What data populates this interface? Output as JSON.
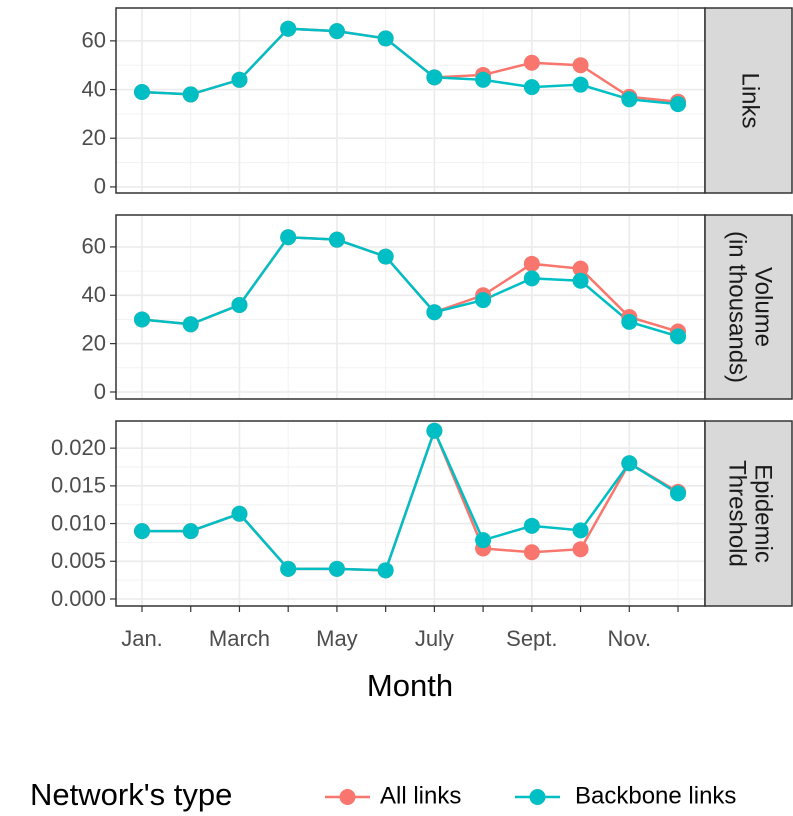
{
  "chart_data": {
    "type": "line",
    "x_label": "Month",
    "legend_title": "Network's type",
    "categories": [
      "Jan.",
      null,
      "March",
      null,
      "May",
      null,
      "July",
      null,
      "Sept.",
      null,
      "Nov.",
      null
    ],
    "series": [
      {
        "name": "All links",
        "color": "#F8766D"
      },
      {
        "name": "Backbone links",
        "color": "#00BFC4"
      }
    ],
    "facets": [
      {
        "label": [
          "Links"
        ],
        "ylim": [
          -2.5,
          73.5
        ],
        "yticks": [
          0,
          20,
          40,
          60
        ],
        "series": [
          {
            "values": [
              39,
              38,
              44,
              65,
              64,
              61,
              45,
              46,
              51,
              50,
              37,
              35
            ]
          },
          {
            "values": [
              39,
              38,
              44,
              65,
              64,
              61,
              45,
              44,
              41,
              42,
              36,
              34
            ]
          }
        ]
      },
      {
        "label": [
          "Volume",
          "(in thousands)"
        ],
        "ylim": [
          -2.9,
          73.2
        ],
        "yticks": [
          0,
          20,
          40,
          60
        ],
        "series": [
          {
            "values": [
              30,
              28,
              36,
              64,
              63,
              56,
              33,
              40,
              53,
              51,
              31,
              25
            ]
          },
          {
            "values": [
              30,
              28,
              36,
              64,
              63,
              56,
              33,
              38,
              47,
              46,
              29,
              23
            ]
          }
        ]
      },
      {
        "label": [
          "Epidemic",
          "Threshold"
        ],
        "ylim": [
          -0.00093,
          0.0236
        ],
        "yticks": [
          {
            "value": 0,
            "label": "0.000"
          },
          {
            "value": 0.005,
            "label": "0.005"
          },
          {
            "value": 0.01,
            "label": "0.010"
          },
          {
            "value": 0.015,
            "label": "0.015"
          },
          {
            "value": 0.02,
            "label": "0.020"
          }
        ],
        "series": [
          {
            "values": [
              0.009,
              0.009,
              0.0113,
              0.004,
              0.004,
              0.0038,
              0.0223,
              0.0067,
              0.0062,
              0.0066,
              0.018,
              0.0142
            ]
          },
          {
            "values": [
              0.009,
              0.009,
              0.0113,
              0.004,
              0.004,
              0.0038,
              0.0223,
              0.0078,
              0.0097,
              0.0091,
              0.018,
              0.014
            ]
          }
        ]
      }
    ]
  }
}
